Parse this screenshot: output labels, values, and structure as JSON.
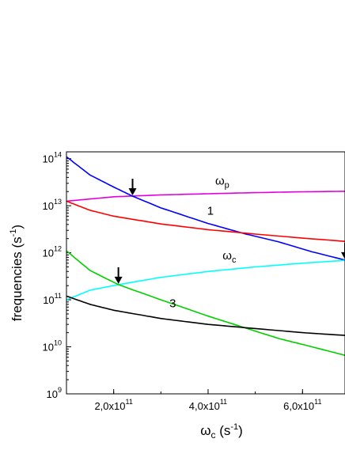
{
  "chart_data": {
    "type": "line",
    "xlabel": {
      "base": "ω",
      "sub": "c",
      "units": " (s",
      "sup": "-1",
      "close": ")"
    },
    "ylabel": {
      "prefix": "frequencies (s",
      "sup": "-1",
      "close": ")"
    },
    "x_scale": "linear",
    "y_scale": "log",
    "xlim": [
      100000000000,
      690000000000
    ],
    "ylim": [
      1000000000,
      140000000000000
    ],
    "x_ticks": [
      {
        "value": 200000000000,
        "mantissa": "2,0x10",
        "exp": "11"
      },
      {
        "value": 400000000000,
        "mantissa": "4,0x10",
        "exp": "11"
      },
      {
        "value": 600000000000,
        "mantissa": "6,0x10",
        "exp": "11"
      }
    ],
    "y_ticks": [
      {
        "value": 1000000000,
        "base": "10",
        "exp": "9"
      },
      {
        "value": 10000000000,
        "base": "10",
        "exp": "10"
      },
      {
        "value": 100000000000,
        "base": "10",
        "exp": "11"
      },
      {
        "value": 1000000000000,
        "base": "10",
        "exp": "12"
      },
      {
        "value": 10000000000000,
        "base": "10",
        "exp": "13"
      },
      {
        "value": 100000000000000,
        "base": "10",
        "exp": "14"
      }
    ],
    "series": [
      {
        "color": "#e000e0",
        "x": [
          100000000000,
          200000000000,
          300000000000,
          400000000000,
          500000000000,
          600000000000,
          690000000000
        ],
        "y": [
          12500000000000,
          15500000000000,
          17000000000000,
          18000000000000,
          19000000000000,
          19800000000000,
          20300000000000
        ]
      },
      {
        "color": "#0000ff",
        "x": [
          100000000000,
          150000000000,
          200000000000,
          240000000000,
          300000000000,
          400000000000,
          480000000000,
          550000000000,
          620000000000,
          690000000000
        ],
        "y": [
          110000000000000,
          45000000000000,
          25000000000000,
          16000000000000,
          9000000000000,
          4200000000000,
          2500000000000,
          1700000000000,
          1050000000000,
          700000000000
        ]
      },
      {
        "color": "#ff0000",
        "x": [
          100000000000,
          150000000000,
          200000000000,
          300000000000,
          400000000000,
          500000000000,
          600000000000,
          690000000000
        ],
        "y": [
          12500000000000,
          8000000000000,
          6000000000000,
          4100000000000,
          3100000000000,
          2500000000000,
          2050000000000,
          1750000000000
        ]
      },
      {
        "color": "#00ffff",
        "x": [
          100000000000,
          150000000000,
          210000000000,
          300000000000,
          400000000000,
          500000000000,
          600000000000,
          690000000000
        ],
        "y": [
          100000000000,
          160000000000,
          210000000000,
          300000000000,
          400000000000,
          500000000000,
          600000000000,
          690000000000
        ]
      },
      {
        "color": "#00d000",
        "x": [
          100000000000,
          150000000000,
          210000000000,
          300000000000,
          400000000000,
          480000000000,
          550000000000,
          620000000000,
          690000000000
        ],
        "y": [
          1100000000000,
          420000000000,
          210000000000,
          100000000000,
          45000000000,
          25000000000,
          15000000000,
          10000000000,
          6600000000
        ]
      },
      {
        "color": "#000000",
        "x": [
          100000000000,
          150000000000,
          200000000000,
          300000000000,
          400000000000,
          500000000000,
          600000000000,
          690000000000
        ],
        "y": [
          120000000000,
          80000000000,
          60000000000,
          40000000000,
          30000000000,
          24500000000,
          20000000000,
          17500000000
        ]
      }
    ],
    "annotations": [
      {
        "base": "ω",
        "sub": "p",
        "x": 430000000000,
        "y": 28000000000000
      },
      {
        "text": "1",
        "x": 405000000000,
        "y": 6500000000000
      },
      {
        "base": "ω",
        "sub": "c",
        "x": 445000000000,
        "y": 720000000000
      },
      {
        "text": "3",
        "x": 325000000000,
        "y": 70000000000
      }
    ],
    "arrows": [
      {
        "x": 240000000000,
        "y": 16000000000000
      },
      {
        "x": 210000000000,
        "y": 210000000000
      },
      {
        "x": 690000000000,
        "y": 700000000000
      }
    ]
  }
}
